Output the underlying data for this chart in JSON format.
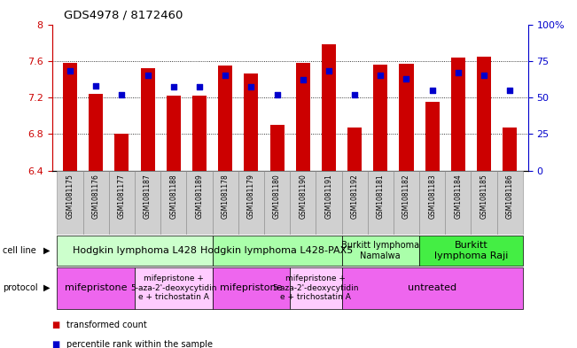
{
  "title": "GDS4978 / 8172460",
  "samples": [
    "GSM1081175",
    "GSM1081176",
    "GSM1081177",
    "GSM1081187",
    "GSM1081188",
    "GSM1081189",
    "GSM1081178",
    "GSM1081179",
    "GSM1081180",
    "GSM1081190",
    "GSM1081191",
    "GSM1081192",
    "GSM1081181",
    "GSM1081182",
    "GSM1081183",
    "GSM1081184",
    "GSM1081185",
    "GSM1081186"
  ],
  "red_values": [
    7.58,
    7.24,
    6.8,
    7.52,
    7.22,
    7.22,
    7.55,
    7.46,
    6.9,
    7.58,
    7.78,
    6.87,
    7.56,
    7.57,
    7.15,
    7.64,
    7.65,
    6.87
  ],
  "blue_values": [
    68,
    58,
    52,
    65,
    57,
    57,
    65,
    57,
    52,
    62,
    68,
    52,
    65,
    63,
    55,
    67,
    65,
    55
  ],
  "ylim_left": [
    6.4,
    8.0
  ],
  "ylim_right": [
    0,
    100
  ],
  "yticks_left": [
    6.4,
    6.8,
    7.2,
    7.6,
    8.0
  ],
  "ytick_labels_left": [
    "6.4",
    "6.8",
    "7.2",
    "7.6",
    "8"
  ],
  "yticks_right": [
    0,
    25,
    50,
    75,
    100
  ],
  "ytick_labels_right": [
    "0",
    "25",
    "50",
    "75",
    "100%"
  ],
  "hlines": [
    6.8,
    7.2,
    7.6
  ],
  "bar_color": "#cc0000",
  "dot_color": "#0000cc",
  "bg_color": "#ffffff",
  "xlabel_bg": "#d0d0d0",
  "cell_line_groups": [
    {
      "label": "Hodgkin lymphoma L428",
      "start": 0,
      "end": 6,
      "color": "#ccffcc",
      "fontsize": 8
    },
    {
      "label": "Hodgkin lymphoma L428-PAX5",
      "start": 6,
      "end": 11,
      "color": "#aaffaa",
      "fontsize": 8
    },
    {
      "label": "Burkitt lymphoma\nNamalwa",
      "start": 11,
      "end": 14,
      "color": "#aaffaa",
      "fontsize": 7
    },
    {
      "label": "Burkitt\nlymphoma Raji",
      "start": 14,
      "end": 18,
      "color": "#44ee44",
      "fontsize": 8
    }
  ],
  "protocol_groups": [
    {
      "label": "mifepristone",
      "start": 0,
      "end": 3,
      "color": "#ee66ee",
      "fontsize": 8
    },
    {
      "label": "mifepristone +\n5-aza-2'-deoxycytidin\ne + trichostatin A",
      "start": 3,
      "end": 6,
      "color": "#ffccff",
      "fontsize": 6.5
    },
    {
      "label": "mifepristone",
      "start": 6,
      "end": 9,
      "color": "#ee66ee",
      "fontsize": 8
    },
    {
      "label": "mifepristone +\n5-aza-2'-deoxycytidin\ne + trichostatin A",
      "start": 9,
      "end": 11,
      "color": "#ffccff",
      "fontsize": 6.5
    },
    {
      "label": "untreated",
      "start": 11,
      "end": 18,
      "color": "#ee66ee",
      "fontsize": 8
    }
  ],
  "legend_items": [
    {
      "label": "transformed count",
      "color": "#cc0000"
    },
    {
      "label": "percentile rank within the sample",
      "color": "#0000cc"
    }
  ]
}
